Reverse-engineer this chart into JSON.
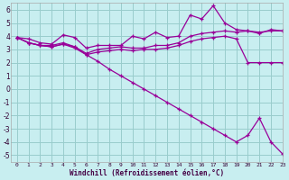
{
  "xlabel": "Windchill (Refroidissement éolien,°C)",
  "xlim": [
    -0.5,
    23
  ],
  "ylim": [
    -5.5,
    6.5
  ],
  "xticks": [
    0,
    1,
    2,
    3,
    4,
    5,
    6,
    7,
    8,
    9,
    10,
    11,
    12,
    13,
    14,
    15,
    16,
    17,
    18,
    19,
    20,
    21,
    22,
    23
  ],
  "yticks": [
    -5,
    -4,
    -3,
    -2,
    -1,
    0,
    1,
    2,
    3,
    4,
    5,
    6
  ],
  "bg_color": "#c8eef0",
  "line_color": "#990099",
  "grid_color": "#99cccc",
  "lines": [
    [
      3.9,
      3.8,
      3.5,
      3.4,
      4.1,
      3.9,
      3.1,
      3.3,
      3.3,
      3.3,
      4.0,
      3.8,
      4.3,
      3.9,
      4.0,
      5.6,
      5.3,
      6.3,
      5.0,
      4.5,
      4.4,
      4.2,
      4.5,
      4.4
    ],
    [
      3.9,
      3.5,
      3.3,
      3.3,
      3.5,
      3.2,
      2.7,
      3.0,
      3.1,
      3.2,
      3.1,
      3.1,
      3.3,
      3.3,
      3.5,
      4.0,
      4.2,
      4.3,
      4.4,
      4.3,
      4.4,
      4.3,
      4.4,
      4.4
    ],
    [
      3.9,
      3.5,
      3.3,
      3.2,
      3.4,
      3.2,
      2.6,
      2.8,
      2.9,
      3.0,
      2.9,
      3.0,
      3.0,
      3.1,
      3.3,
      3.6,
      3.8,
      3.9,
      4.0,
      3.8,
      2.0,
      2.0,
      2.0,
      2.0
    ],
    [
      3.9,
      3.5,
      3.3,
      3.2,
      3.4,
      3.1,
      2.6,
      2.1,
      1.5,
      1.0,
      0.5,
      0.0,
      -0.5,
      -1.0,
      -1.5,
      -2.0,
      -2.5,
      -3.0,
      -3.5,
      -4.0,
      -3.5,
      -2.2,
      -4.0,
      -4.9
    ]
  ]
}
